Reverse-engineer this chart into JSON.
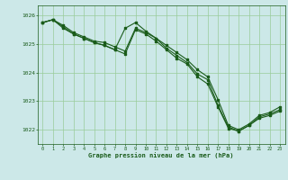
{
  "title": "Graphe pression niveau de la mer (hPa)",
  "background_color": "#cce8e8",
  "plot_bg_color": "#cce8e8",
  "grid_color": "#99cc99",
  "line_color": "#1a5c1a",
  "marker_color": "#1a5c1a",
  "xlim": [
    -0.5,
    23.5
  ],
  "ylim": [
    1021.5,
    1026.35
  ],
  "yticks": [
    1022,
    1023,
    1024,
    1025,
    1026
  ],
  "xticks": [
    0,
    1,
    2,
    3,
    4,
    5,
    6,
    7,
    8,
    9,
    10,
    11,
    12,
    13,
    14,
    15,
    16,
    17,
    18,
    19,
    20,
    21,
    22,
    23
  ],
  "series1_x": [
    0,
    1,
    2,
    3,
    4,
    5,
    6,
    7,
    8,
    9,
    10,
    11,
    12,
    13,
    14,
    15,
    16,
    17,
    18,
    19,
    20,
    21,
    22,
    23
  ],
  "series1_y": [
    1025.75,
    1025.85,
    1025.65,
    1025.4,
    1025.25,
    1025.1,
    1025.05,
    1024.9,
    1024.75,
    1025.55,
    1025.4,
    1025.2,
    1024.95,
    1024.7,
    1024.45,
    1024.1,
    1023.85,
    1023.05,
    1022.15,
    1022.0,
    1022.2,
    1022.5,
    1022.6,
    1022.8
  ],
  "series2_x": [
    0,
    1,
    2,
    3,
    4,
    5,
    6,
    7,
    8,
    9,
    10,
    11,
    12,
    13,
    14,
    15,
    16,
    17,
    18,
    19,
    20,
    21,
    22,
    23
  ],
  "series2_y": [
    1025.75,
    1025.85,
    1025.55,
    1025.35,
    1025.2,
    1025.05,
    1024.95,
    1024.8,
    1025.55,
    1025.75,
    1025.45,
    1025.2,
    1024.85,
    1024.6,
    1024.35,
    1023.95,
    1023.75,
    1022.85,
    1022.1,
    1021.95,
    1022.15,
    1022.45,
    1022.55,
    1022.7
  ],
  "series3_x": [
    0,
    1,
    2,
    3,
    4,
    5,
    6,
    7,
    8,
    9,
    10,
    11,
    12,
    13,
    14,
    15,
    16,
    17,
    18,
    19,
    20,
    21,
    22,
    23
  ],
  "series3_y": [
    1025.75,
    1025.85,
    1025.6,
    1025.35,
    1025.2,
    1025.05,
    1024.95,
    1024.8,
    1024.65,
    1025.5,
    1025.35,
    1025.1,
    1024.8,
    1024.5,
    1024.3,
    1023.85,
    1023.6,
    1022.8,
    1022.05,
    1021.95,
    1022.15,
    1022.4,
    1022.5,
    1022.65
  ]
}
